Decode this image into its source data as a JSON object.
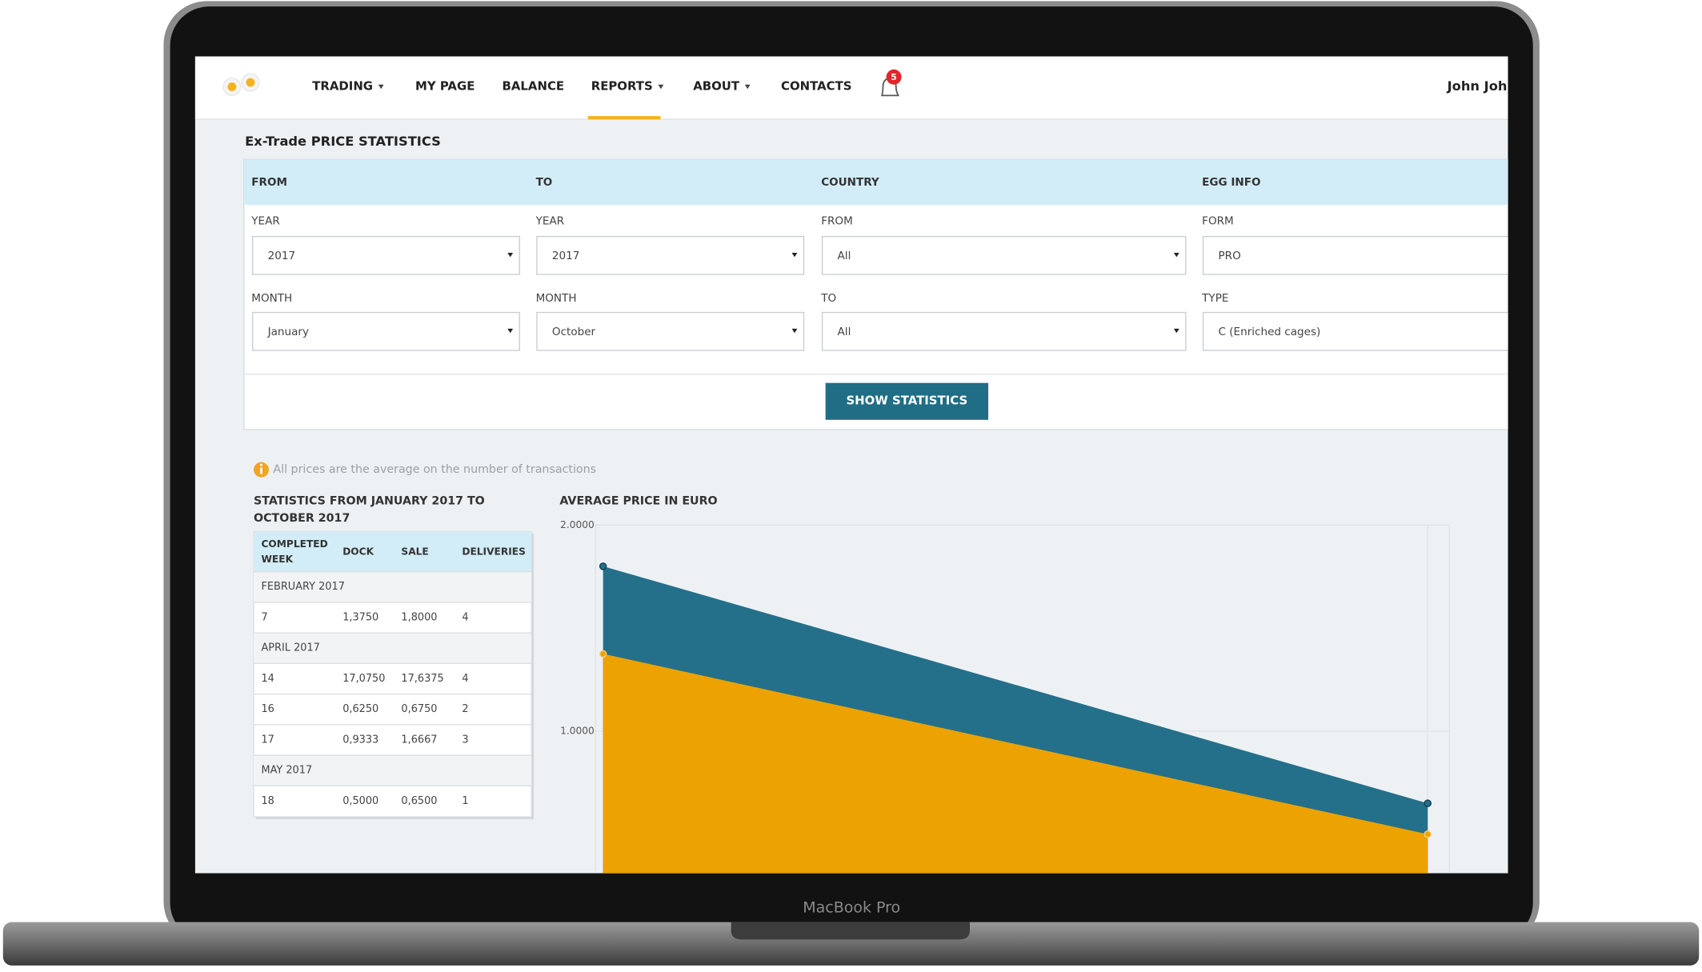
{
  "laptop_label": "MacBook Pro",
  "nav": {
    "items": [
      "TRADING",
      "MY PAGE",
      "BALANCE",
      "REPORTS",
      "ABOUT",
      "CONTACTS"
    ],
    "notifications": 5,
    "user": "John Joh"
  },
  "page_title": "Ex-Trade PRICE STATISTICS",
  "filters": {
    "headers": [
      "FROM",
      "TO",
      "COUNTRY",
      "EGG INFO"
    ],
    "fields": [
      {
        "label": "YEAR",
        "value": "2017"
      },
      {
        "label": "YEAR",
        "value": "2017"
      },
      {
        "label": "FROM",
        "value": "All"
      },
      {
        "label": "FORM",
        "value": "PRO"
      },
      {
        "label": "MONTH",
        "value": "January"
      },
      {
        "label": "MONTH",
        "value": "October"
      },
      {
        "label": "TO",
        "value": "All"
      },
      {
        "label": "TYPE",
        "value": "C (Enriched cages)"
      }
    ],
    "button": "SHOW STATISTICS"
  },
  "note": "All prices are the average on the number of transactions",
  "table": {
    "title": [
      "STATISTICS FROM JANUARY 2017 TO",
      "OCTOBER 2017"
    ],
    "columns": [
      [
        "COMPLETED",
        "WEEK"
      ],
      "DOCK",
      "SALE",
      "DELIVERIES"
    ],
    "rows": [
      [
        "FEBRUARY 2017"
      ],
      [
        7,
        "1,3750",
        "1,8000",
        4
      ],
      [
        "APRIL 2017"
      ],
      [
        14,
        "17,0750",
        "17,6375",
        4
      ],
      [
        16,
        "0,6250",
        "0,6750",
        2
      ],
      [
        17,
        "0,9333",
        "1,6667",
        3
      ],
      [
        "MAY 2017"
      ],
      [
        18,
        "0,5000",
        "0,6500",
        1
      ]
    ]
  },
  "chart": {
    "type": "area",
    "title": "AVERAGE PRICE IN EURO",
    "ylim": [
      0,
      2
    ],
    "yticks": [
      {
        "value": 2,
        "label": "2.0000"
      },
      {
        "value": 1,
        "label": "1.0000"
      }
    ],
    "series": [
      {
        "color": "#24708a",
        "values": [
          1.8,
          0.65
        ]
      },
      {
        "color": "#eca200",
        "values": [
          1.375,
          0.5
        ]
      }
    ]
  }
}
